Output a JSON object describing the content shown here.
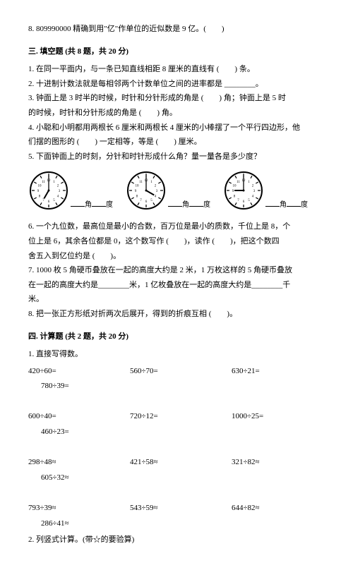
{
  "q8_top": "8. 809990000 精确到用\"亿\"作单位的近似数是 9 亿。(　　)",
  "section3_title": "三. 填空题 (共 8 题，共 20 分)",
  "s3": {
    "q1": "1. 在同一平面内，与一条已知直线相距 8 厘米的直线有 (　　) 条。",
    "q2": "2. 十进制计数法就是每相邻两个计数单位之间的进率都是 ________。",
    "q3a": "3. 钟面上是 3 时半的时候，时针和分针形成的角是 (　　) 角；钟面上是 5 时",
    "q3b": "的时候，时针和分针形成的角是 (　　) 角。",
    "q4a": "4. 小聪和小明都用两根长 6 厘米和两根长 4 厘米的小棒摆了一个平行四边形，他",
    "q4b": "们摆的图形的 (　　) 一定相等，等是 (　　) 厘米。",
    "q5": "5. 下面钟面上的时刻，分针和时针形成什么角？量一量各是多少度？",
    "clock_label_angle": "角",
    "clock_label_deg": "度",
    "q6a": "6. 一个九位数，最高位是最小的合数，百万位是最小的质数，千位上是 8，个",
    "q6b": "位上是 6，其余各位都是 0，这个数写作 (　　)，读作 (　　)，把这个数四",
    "q6c": "舍五入到亿位约是 (　　)。",
    "q7a": "7. 1000 枚 5 角硬币叠放在一起的高度大约是 2 米，1 万枚这样的 5 角硬币叠放",
    "q7b": "在一起的高度大约是________米，1 亿枚叠放在一起的高度大约是________千",
    "q7c": "米。",
    "q8": "8. 把一张正方形纸对折两次后展开，得到的折痕互相 (　　)。"
  },
  "section4_title": "四. 计算题 (共 2 题，共 20 分)",
  "s4": {
    "q1": "1. 直接写得数。",
    "calc": [
      [
        "420÷60=",
        "560÷70=",
        "630÷21="
      ],
      [
        "780÷39=",
        "",
        ""
      ],
      [
        "",
        "",
        ""
      ],
      [
        "600÷40=",
        "720÷12=",
        "1000÷25="
      ],
      [
        "460÷23=",
        "",
        ""
      ],
      [
        "",
        "",
        ""
      ],
      [
        "298÷48≈",
        "421÷58≈",
        "321÷82≈"
      ],
      [
        "605÷32≈",
        "",
        ""
      ],
      [
        "",
        "",
        ""
      ],
      [
        "793÷39≈",
        "543÷59≈",
        "644÷82≈"
      ],
      [
        "286÷41≈",
        "",
        ""
      ]
    ],
    "q2": "2. 列竖式计算。(带☆的要验算)"
  },
  "clocks": [
    {
      "hour_angle": 210,
      "min_angle": 0
    },
    {
      "hour_angle": 120,
      "min_angle": 0
    },
    {
      "hour_angle": 270,
      "min_angle": 0
    }
  ],
  "style": {
    "clock_size": 58,
    "clock_stroke": "#000",
    "clock_fill": "#fff"
  }
}
